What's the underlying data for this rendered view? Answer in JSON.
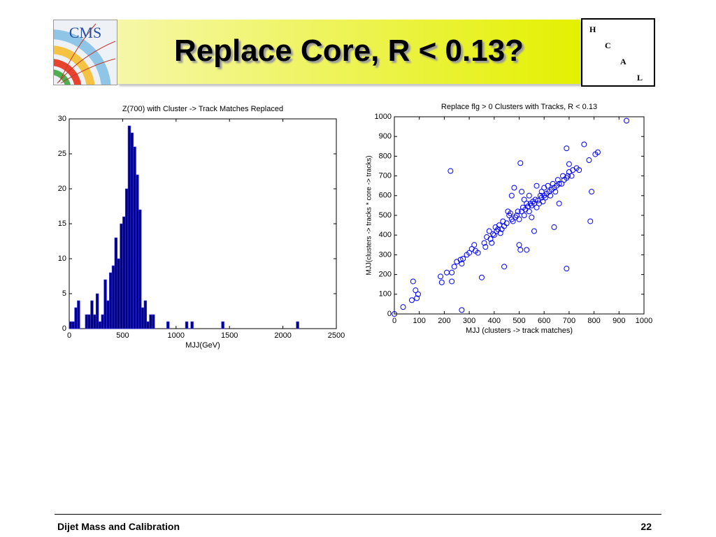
{
  "header": {
    "logo": "CMS",
    "title": "Replace Core, R < 0.13?",
    "hcal": [
      "H",
      "C",
      "A",
      "L"
    ]
  },
  "footer": {
    "left": "Dijet Mass and Calibration",
    "page": "22"
  },
  "chart_data": [
    {
      "type": "histogram",
      "title": "Z(700) with Cluster -> Track Matches Replaced",
      "x_label": "MJJ(GeV)",
      "bins": [
        0,
        25,
        50,
        75,
        100,
        125,
        150,
        175,
        200,
        225,
        250,
        275,
        300,
        325,
        350,
        375,
        400,
        425,
        450,
        475,
        500,
        525,
        550,
        575,
        600,
        625,
        650,
        675,
        700,
        725,
        750,
        775,
        800,
        912,
        937,
        1087,
        1112,
        1137,
        1162,
        1425,
        1450,
        2125,
        2150
      ],
      "counts": [
        1,
        1,
        3,
        4,
        0,
        0,
        2,
        2,
        4,
        2,
        5,
        1,
        2,
        7,
        4,
        8,
        9,
        13,
        10,
        15,
        16,
        20,
        29,
        28,
        26,
        22,
        17,
        3,
        4,
        1,
        2,
        2,
        0,
        1,
        0,
        1,
        0,
        1,
        0,
        1,
        0,
        1
      ],
      "color": "#000080",
      "xlim": [
        0,
        2500
      ],
      "xticks": [
        0,
        500,
        1000,
        1500,
        2000,
        2500
      ],
      "ylim": [
        0,
        30
      ],
      "yticks": [
        0,
        5,
        10,
        15,
        20,
        25,
        30
      ]
    },
    {
      "type": "scatter",
      "title": "Replace flg > 0 Clusters with Tracks, R < 0.13",
      "x_label": "MJJ (clusters -> track matches)",
      "y_label": "MJJ(clusters -> tracks * core  -> tracks)",
      "x": [
        0,
        35,
        70,
        75,
        85,
        95,
        90,
        185,
        190,
        225,
        230,
        230,
        240,
        210,
        250,
        265,
        270,
        275,
        270,
        290,
        300,
        310,
        320,
        325,
        335,
        350,
        360,
        365,
        370,
        380,
        385,
        390,
        395,
        400,
        405,
        410,
        415,
        420,
        425,
        430,
        435,
        440,
        440,
        450,
        455,
        460,
        465,
        470,
        470,
        475,
        480,
        485,
        490,
        495,
        500,
        500,
        505,
        505,
        510,
        510,
        515,
        520,
        520,
        525,
        530,
        530,
        535,
        540,
        540,
        545,
        550,
        550,
        555,
        560,
        560,
        565,
        570,
        570,
        575,
        580,
        585,
        590,
        590,
        595,
        600,
        600,
        605,
        610,
        615,
        620,
        625,
        630,
        635,
        640,
        640,
        645,
        650,
        655,
        660,
        660,
        670,
        675,
        680,
        690,
        690,
        695,
        700,
        700,
        710,
        715,
        690,
        730,
        740,
        760,
        780,
        785,
        790,
        805,
        815,
        930
      ],
      "values": [
        0,
        35,
        70,
        165,
        120,
        100,
        80,
        190,
        160,
        725,
        165,
        210,
        240,
        210,
        265,
        275,
        255,
        280,
        20,
        300,
        310,
        330,
        350,
        320,
        310,
        185,
        360,
        340,
        390,
        420,
        380,
        360,
        405,
        400,
        440,
        420,
        430,
        450,
        410,
        430,
        470,
        240,
        445,
        460,
        520,
        500,
        510,
        480,
        600,
        470,
        640,
        490,
        500,
        520,
        350,
        480,
        325,
        765,
        520,
        620,
        540,
        500,
        580,
        530,
        325,
        560,
        545,
        520,
        600,
        560,
        550,
        490,
        570,
        420,
        560,
        580,
        650,
        540,
        575,
        560,
        600,
        590,
        620,
        570,
        600,
        640,
        590,
        610,
        650,
        620,
        600,
        630,
        660,
        440,
        640,
        620,
        650,
        680,
        560,
        660,
        660,
        700,
        680,
        230,
        690,
        700,
        760,
        720,
        700,
        730,
        840,
        740,
        730,
        860,
        780,
        470,
        620,
        810,
        820,
        980
      ],
      "color": "#0000ff",
      "xlim": [
        0,
        1000
      ],
      "xticks": [
        0,
        100,
        200,
        300,
        400,
        500,
        600,
        700,
        800,
        900,
        1000
      ],
      "ylim": [
        0,
        1000
      ],
      "yticks": [
        0,
        100,
        200,
        300,
        400,
        500,
        600,
        700,
        800,
        900,
        1000
      ]
    }
  ]
}
